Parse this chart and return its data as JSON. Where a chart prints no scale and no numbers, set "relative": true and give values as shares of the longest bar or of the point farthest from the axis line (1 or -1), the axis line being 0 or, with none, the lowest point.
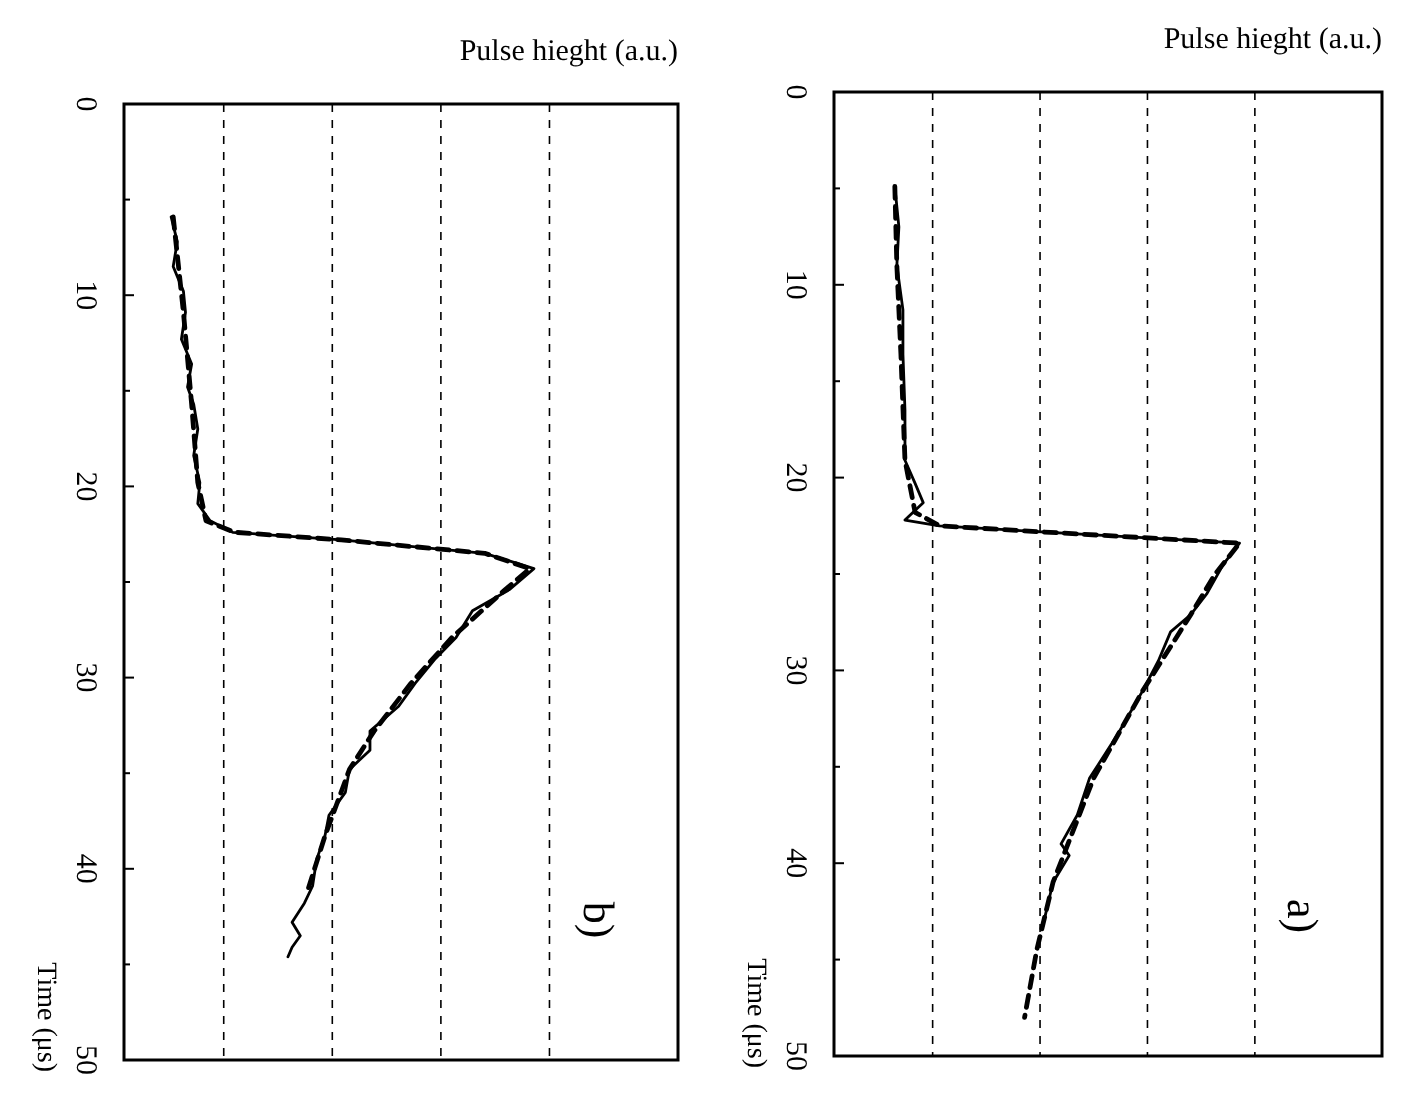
{
  "chart_data": [
    {
      "type": "line",
      "orientation": "horizontal",
      "ylabel": "Time (μs)",
      "xlabel": "Pulse hieght (a.u.)",
      "relative": true,
      "grid": true,
      "ylim": [
        50,
        0
      ],
      "yticks": [
        0,
        10,
        20,
        30,
        40,
        50
      ],
      "annotations": [
        "b)"
      ],
      "series": [
        {
          "color": "#000000",
          "line_style": "solid",
          "x": [
            5.9,
            7.2,
            8.5,
            9.8,
            10.9,
            12.3,
            13.6,
            14.8,
            15.7,
            17,
            18.4,
            19.8,
            20.9,
            21.8,
            22.4,
            22.8,
            23.5,
            24.3,
            25.4,
            26.5,
            27.9,
            29,
            30.3,
            31.5,
            32.8,
            33.8,
            34.8,
            36,
            37.2,
            38.3,
            39.5,
            40.9,
            41.8,
            42.8,
            43.5,
            44.1,
            44.6
          ],
          "values": [
            0.115,
            0.13,
            0.12,
            0.145,
            0.15,
            0.14,
            0.165,
            0.155,
            0.17,
            0.18,
            0.17,
            0.185,
            0.18,
            0.21,
            0.265,
            0.53,
            0.88,
            1.0,
            0.94,
            0.85,
            0.81,
            0.76,
            0.71,
            0.67,
            0.6,
            0.6,
            0.55,
            0.54,
            0.5,
            0.49,
            0.47,
            0.46,
            0.44,
            0.41,
            0.43,
            0.41,
            0.4
          ]
        },
        {
          "color": "#000000",
          "line_style": "dashed",
          "x": [
            5.9,
            10.9,
            15.7,
            19.8,
            21.8,
            22.4,
            22.8,
            23.5,
            24.3,
            25.4,
            27.9,
            30.3,
            32.8,
            34.8,
            38.3,
            41
          ],
          "values": [
            0.12,
            0.145,
            0.165,
            0.18,
            0.2,
            0.27,
            0.53,
            0.88,
            0.99,
            0.93,
            0.8,
            0.7,
            0.61,
            0.55,
            0.49,
            0.45
          ]
        }
      ]
    },
    {
      "type": "line",
      "orientation": "horizontal",
      "ylabel": "Time (μs)",
      "xlabel": "Pulse hieght (a.u.)",
      "relative": true,
      "grid": true,
      "ylim": [
        50,
        0
      ],
      "yticks": [
        0,
        10,
        20,
        30,
        40,
        50
      ],
      "annotations": [
        "a)"
      ],
      "series": [
        {
          "color": "#000000",
          "line_style": "solid",
          "x": [
            4.9,
            7,
            9,
            11.3,
            13.6,
            16.5,
            19.1,
            20.3,
            21.3,
            22.2,
            22.5,
            22.8,
            23.4,
            24.5,
            26,
            27.1,
            28,
            29.5,
            31.1,
            33.3,
            35.6,
            37.5,
            39,
            39.6,
            41,
            42.8
          ],
          "values": [
            0.15,
            0.16,
            0.155,
            0.17,
            0.17,
            0.175,
            0.175,
            0.2,
            0.22,
            0.175,
            0.26,
            0.5,
            1.0,
            0.96,
            0.92,
            0.88,
            0.83,
            0.8,
            0.76,
            0.7,
            0.63,
            0.6,
            0.56,
            0.58,
            0.54,
            0.52
          ]
        },
        {
          "color": "#000000",
          "line_style": "dashed",
          "x": [
            4.9,
            9,
            13.6,
            19.1,
            21.8,
            22.5,
            22.8,
            23.4,
            25,
            27.1,
            31.1,
            35.6,
            41,
            44.5,
            48
          ],
          "values": [
            0.15,
            0.155,
            0.165,
            0.175,
            0.2,
            0.26,
            0.5,
            1.0,
            0.94,
            0.88,
            0.76,
            0.64,
            0.54,
            0.5,
            0.47
          ]
        }
      ]
    }
  ]
}
